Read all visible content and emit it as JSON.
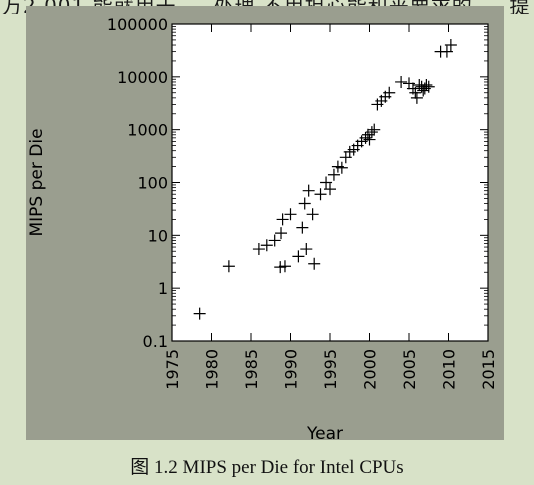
{
  "top_partial_text": "万2,001,能就用于 ... 处理,不用担心能和来要求的 ... 提",
  "caption": "图 1.2 MIPS per Die for Intel CPUs",
  "chart_data": {
    "type": "scatter",
    "title": "",
    "xlabel": "Year",
    "ylabel": "MIPS per Die",
    "xlim": [
      1975,
      2015
    ],
    "ylim": [
      0.1,
      100000
    ],
    "yscale": "log",
    "marker": "plus",
    "grid": false,
    "x_ticks": [
      "1975",
      "1980",
      "1985",
      "1990",
      "1995",
      "2000",
      "2005",
      "2010",
      "2015"
    ],
    "y_ticks": [
      "0.1",
      "1",
      "10",
      "100",
      "1000",
      "10000",
      "100000"
    ],
    "series": [
      {
        "points": [
          [
            1978.5,
            0.33
          ],
          [
            1982.2,
            2.6
          ],
          [
            1986.0,
            5.5
          ],
          [
            1987.0,
            6.5
          ],
          [
            1988.0,
            8.0
          ],
          [
            1988.8,
            11.0
          ],
          [
            1989.0,
            20.0
          ],
          [
            1989.3,
            2.6
          ],
          [
            1988.7,
            2.5
          ],
          [
            1990.0,
            25.0
          ],
          [
            1991.0,
            4.0
          ],
          [
            1991.5,
            14.0
          ],
          [
            1991.8,
            40.0
          ],
          [
            1992.0,
            5.5
          ],
          [
            1992.3,
            70.0
          ],
          [
            1992.8,
            25.0
          ],
          [
            1993.0,
            2.9
          ],
          [
            1993.8,
            60.0
          ],
          [
            1994.5,
            100.0
          ],
          [
            1995.0,
            75.0
          ],
          [
            1995.5,
            140.0
          ],
          [
            1996.0,
            200.0
          ],
          [
            1996.5,
            190.0
          ],
          [
            1997.0,
            300.0
          ],
          [
            1997.5,
            380.0
          ],
          [
            1998.0,
            420.0
          ],
          [
            1998.5,
            500.0
          ],
          [
            1999.0,
            600.0
          ],
          [
            1999.5,
            700.0
          ],
          [
            1999.8,
            800.0
          ],
          [
            2000.0,
            650.0
          ],
          [
            2000.3,
            900.0
          ],
          [
            2000.6,
            1000.0
          ],
          [
            2001.0,
            3000.0
          ],
          [
            2001.5,
            3500.0
          ],
          [
            2002.0,
            4200.0
          ],
          [
            2002.5,
            5000.0
          ],
          [
            2004.0,
            8000.0
          ],
          [
            2005.0,
            7500.0
          ],
          [
            2005.5,
            6000.0
          ],
          [
            2005.8,
            5000.0
          ],
          [
            2006.0,
            4000.0
          ],
          [
            2006.3,
            7000.0
          ],
          [
            2006.6,
            6500.0
          ],
          [
            2006.8,
            5500.0
          ],
          [
            2007.0,
            6000.0
          ],
          [
            2007.2,
            7000.0
          ],
          [
            2007.5,
            6500.0
          ],
          [
            2009.0,
            30000.0
          ],
          [
            2009.8,
            30000.0
          ],
          [
            2010.3,
            40000.0
          ]
        ]
      }
    ]
  }
}
